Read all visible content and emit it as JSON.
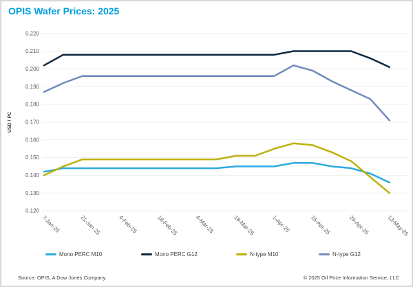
{
  "header": {
    "title": "OPIS Wafer Prices: 2025"
  },
  "footer": {
    "source": "Source: OPIS, A Dow Jones Company",
    "copyright": "© 2025 Oil Price Information Service, LLC"
  },
  "colors": {
    "title_accent": "#00A0DF",
    "frame_border": "#D8D8D8",
    "gridline": "#EFEFEF",
    "tick_label": "#595959",
    "axis_title": "#404040"
  },
  "chart_data": {
    "type": "line",
    "title": "OPIS Wafer Prices: 2025",
    "xlabel": "",
    "ylabel": "USD / PC",
    "ylim": [
      0.12,
      0.22
    ],
    "y_tick_step": 0.01,
    "y_tick_format_decimals": 3,
    "grid": true,
    "legend_position": "bottom",
    "x": [
      "7-Jan-25",
      "14-Jan-25",
      "21-Jan-25",
      "28-Jan-25",
      "4-Feb-25",
      "11-Feb-25",
      "18-Feb-25",
      "25-Feb-25",
      "4-Mar-25",
      "11-Mar-25",
      "18-Mar-25",
      "25-Mar-25",
      "1-Apr-25",
      "8-Apr-25",
      "15-Apr-25",
      "22-Apr-25",
      "29-Apr-25",
      "6-May-25",
      "13-May-25"
    ],
    "x_tick_labels": [
      "7-Jan-25",
      "21-Jan-25",
      "4-Feb-25",
      "18-Feb-25",
      "4-Mar-25",
      "18-Mar-25",
      "1-Apr-25",
      "15-Apr-25",
      "29-Apr-25",
      "13-May-25"
    ],
    "series": [
      {
        "name": "Mono PERC M10",
        "color": "#2BA9E0",
        "values": [
          0.142,
          0.144,
          0.144,
          0.144,
          0.144,
          0.144,
          0.144,
          0.144,
          0.144,
          0.144,
          0.145,
          0.145,
          0.145,
          0.147,
          0.147,
          0.145,
          0.144,
          0.141,
          0.136
        ]
      },
      {
        "name": "Mono PERC G12",
        "color": "#0E2841",
        "values": [
          0.202,
          0.208,
          0.208,
          0.208,
          0.208,
          0.208,
          0.208,
          0.208,
          0.208,
          0.208,
          0.208,
          0.208,
          0.208,
          0.21,
          0.21,
          0.21,
          0.21,
          0.206,
          0.201
        ]
      },
      {
        "name": "N-type M10",
        "color": "#BFB00D",
        "values": [
          0.14,
          0.145,
          0.149,
          0.149,
          0.149,
          0.149,
          0.149,
          0.149,
          0.149,
          0.149,
          0.151,
          0.151,
          0.155,
          0.158,
          0.157,
          0.153,
          0.148,
          0.139,
          0.13
        ]
      },
      {
        "name": "N-type G12",
        "color": "#7289BE",
        "values": [
          0.187,
          0.192,
          0.196,
          0.196,
          0.196,
          0.196,
          0.196,
          0.196,
          0.196,
          0.196,
          0.196,
          0.196,
          0.196,
          0.202,
          0.199,
          0.193,
          0.188,
          0.183,
          0.171
        ]
      }
    ]
  }
}
